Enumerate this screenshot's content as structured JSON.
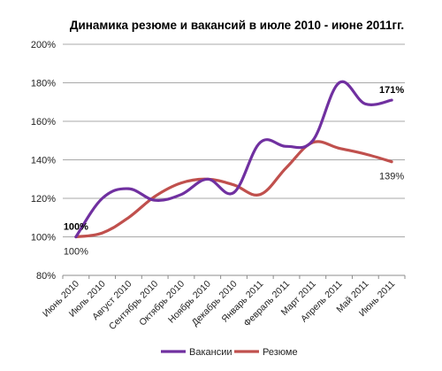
{
  "chart_data": {
    "type": "line",
    "title": "Динамика резюме и вакансий в июле 2010 - июне 2011гг.",
    "categories": [
      "Июнь 2010",
      "Июль 2010",
      "Август 2010",
      "Сентябрь 2010",
      "Октябрь 2010",
      "Ноябрь 2010",
      "Декабрь 2010",
      "Январь 2011",
      "Февраль 2011",
      "Март 2011",
      "Апрель 2011",
      "Май 2011",
      "Июнь 2011"
    ],
    "ylim": [
      80,
      200
    ],
    "yticks": [
      80,
      100,
      120,
      140,
      160,
      180,
      200
    ],
    "ytick_labels": [
      "80%",
      "100%",
      "120%",
      "140%",
      "160%",
      "180%",
      "200%"
    ],
    "grid": true,
    "legend": "bottom",
    "series": [
      {
        "name": "Вакансии",
        "color": "#7030A0",
        "values": [
          100,
          120,
          125,
          119,
          122,
          130,
          123,
          149,
          147,
          150,
          180,
          169,
          171
        ]
      },
      {
        "name": "Резюме",
        "color": "#C0504D",
        "values": [
          100,
          102,
          110,
          121,
          128,
          130,
          127,
          122,
          136,
          149,
          146,
          143,
          139
        ]
      }
    ],
    "annotations": [
      {
        "series": 0,
        "index": 0,
        "text": "100%",
        "bold": true,
        "position": "above"
      },
      {
        "series": 1,
        "index": 0,
        "text": "100%",
        "bold": false,
        "position": "below"
      },
      {
        "series": 0,
        "index": 12,
        "text": "171%",
        "bold": true,
        "position": "above"
      },
      {
        "series": 1,
        "index": 12,
        "text": "139%",
        "bold": false,
        "position": "below"
      }
    ]
  }
}
